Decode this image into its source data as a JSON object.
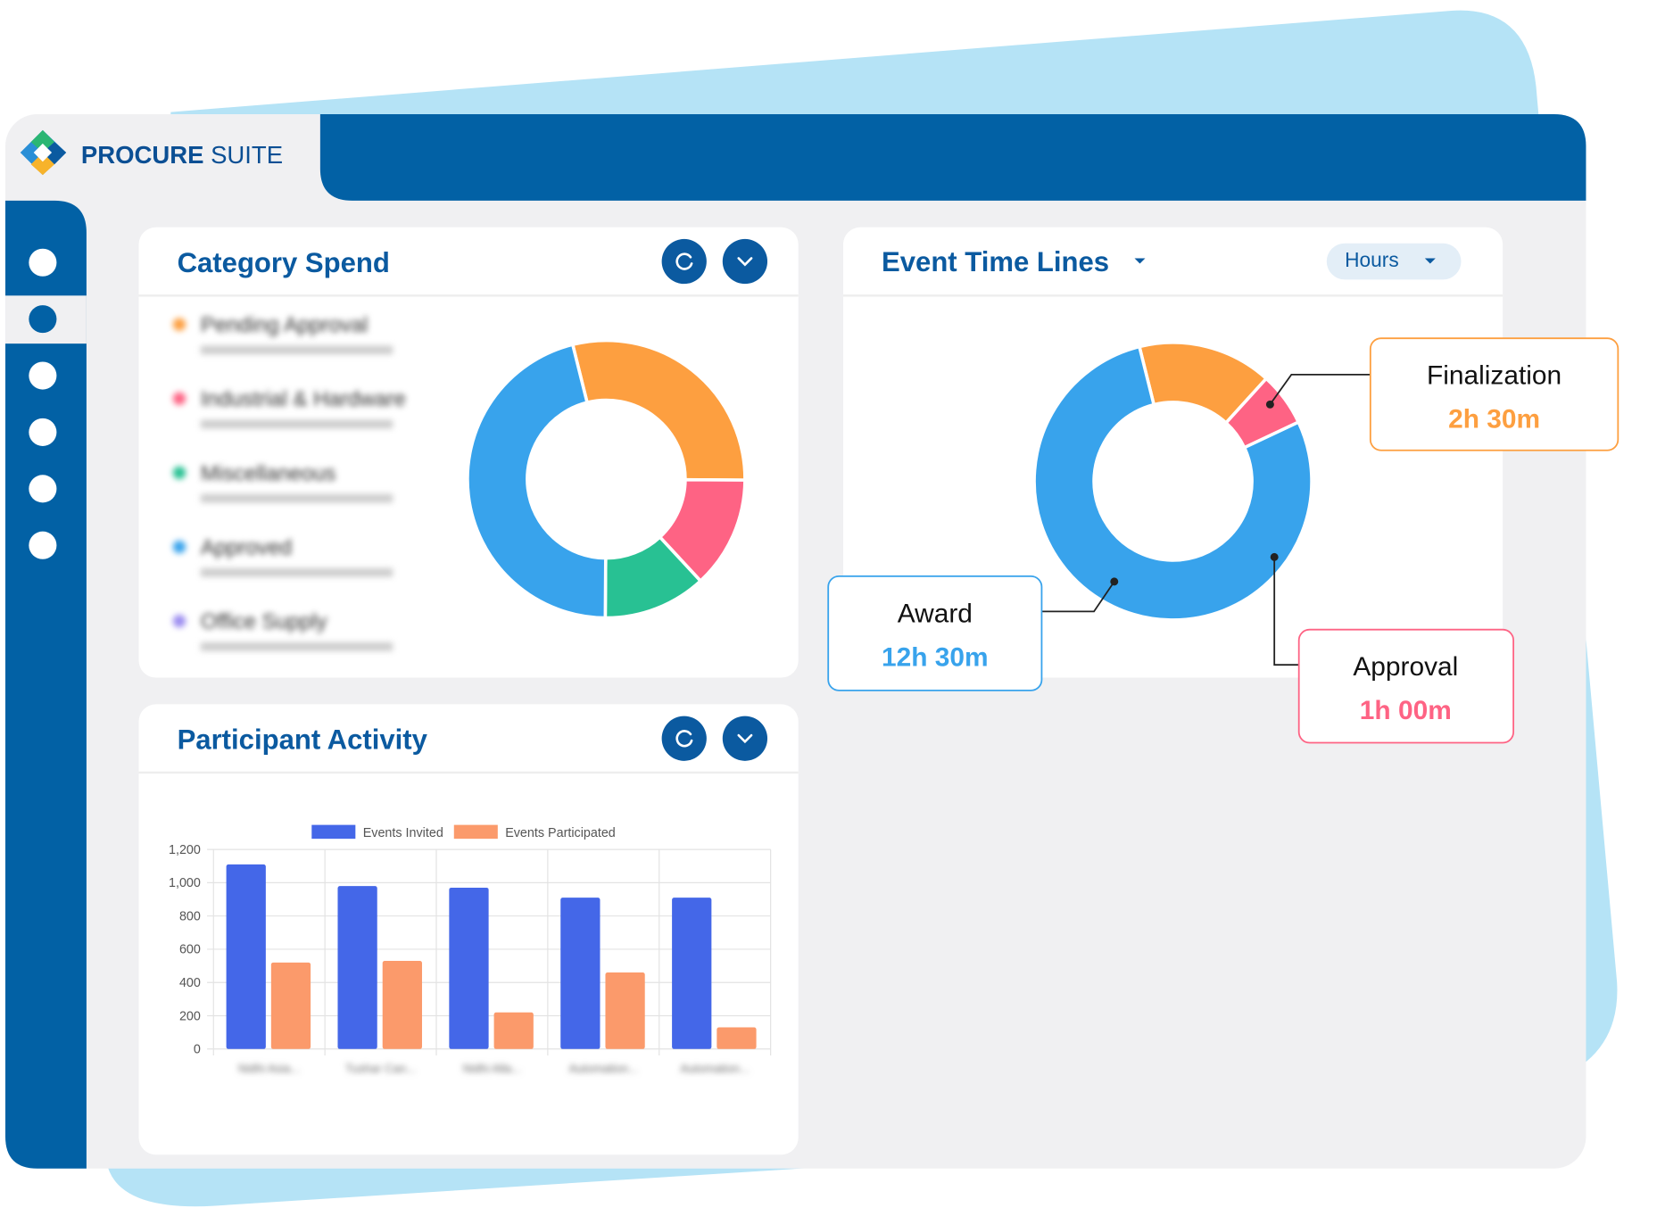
{
  "header": {
    "brand_bold": "PROCURE",
    "brand_light": "SUITE"
  },
  "category_spend": {
    "title": "Category Spend",
    "chart_data": {
      "type": "donut",
      "categories": [
        "Pending Approval",
        "Industrial & Hardware",
        "Miscellaneous",
        "Approved",
        "Office Supply"
      ],
      "values": [
        29,
        13,
        12,
        46,
        null
      ],
      "colors": [
        "#fd9f40",
        "#fe6384",
        "#28c193",
        "#38a3ec",
        "#9b8cf0"
      ]
    }
  },
  "event_timelines": {
    "title": "Event Time Lines",
    "unit_selector": "Hours",
    "chart_data": {
      "type": "donut",
      "categories": [
        "Finalization",
        "Approval",
        "Award"
      ],
      "values": [
        2.5,
        1,
        12.5
      ],
      "value_labels": [
        "2h 30m",
        "1h 00m",
        "12h 30m"
      ],
      "colors": [
        "#fd9f40",
        "#fe6384",
        "#38a3ec"
      ]
    }
  },
  "participant_activity": {
    "title": "Participant Activity",
    "chart_data": {
      "type": "bar",
      "categories": [
        "Nidhi Asia...",
        "Tushar Can...",
        "Nidhi Alla...",
        "Automation...",
        "Automation..."
      ],
      "series": [
        {
          "name": "Events Invited",
          "color": "#4467e8",
          "values": [
            1110,
            980,
            970,
            910,
            910
          ]
        },
        {
          "name": "Events Participated",
          "color": "#fb9a6b",
          "values": [
            520,
            530,
            220,
            460,
            130
          ]
        }
      ],
      "ylim": [
        0,
        1200
      ],
      "yticks": [
        0,
        200,
        400,
        600,
        800,
        {
          "value": 1000,
          "label": "1,000"
        },
        {
          "value": 1200,
          "label": "1,200"
        }
      ],
      "grid": true
    }
  }
}
